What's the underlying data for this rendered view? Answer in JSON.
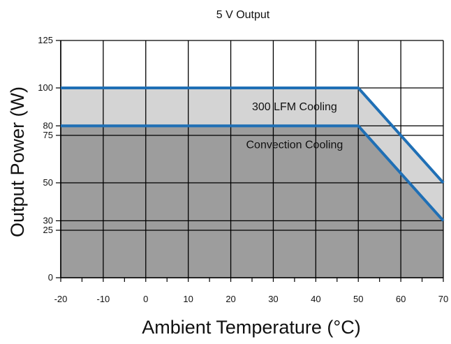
{
  "chart_data": {
    "type": "line",
    "title": "5 V Output",
    "xlabel": "Ambient Temperature (°C)",
    "ylabel": "Output Power (W)",
    "xlim": [
      -20,
      70
    ],
    "ylim": [
      0,
      125
    ],
    "x_ticks": [
      -20,
      -10,
      0,
      10,
      20,
      30,
      40,
      50,
      60,
      70
    ],
    "y_ticks": [
      0,
      25,
      30,
      50,
      75,
      80,
      100,
      125
    ],
    "grid": true,
    "series": [
      {
        "name": "300 LFM Cooling",
        "x": [
          -20,
          50,
          70
        ],
        "y": [
          100,
          100,
          50
        ]
      },
      {
        "name": "Convection Cooling",
        "x": [
          -20,
          50,
          70
        ],
        "y": [
          80,
          80,
          30
        ]
      }
    ],
    "annotations": [
      {
        "text": "300 LFM Cooling",
        "x": 35,
        "y": 90
      },
      {
        "text": "Convection Cooling",
        "x": 35,
        "y": 70
      }
    ],
    "colors": {
      "line": "#1f6fb5",
      "fill_upper": "#d4d4d4",
      "fill_lower": "#9d9d9d",
      "grid": "#000000"
    }
  }
}
